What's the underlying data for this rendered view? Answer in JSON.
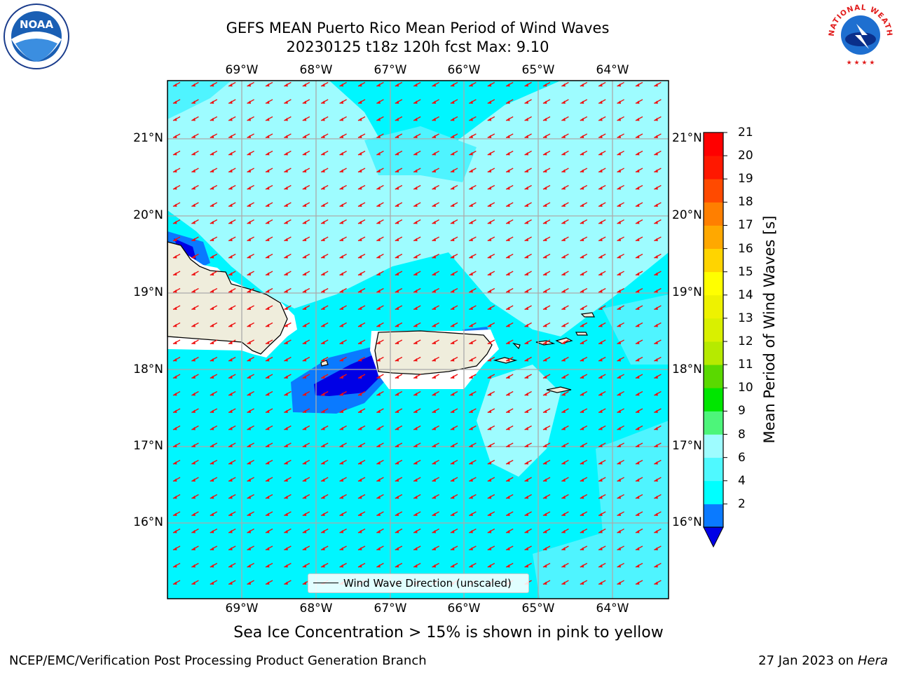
{
  "title_line1": "GEFS MEAN Puerto Rico Mean Period of Wind Waves",
  "title_line2": "20230125 t18z 120h fcst   Max: 9.10",
  "lon_labels": [
    "69°W",
    "68°W",
    "67°W",
    "66°W",
    "65°W",
    "64°W"
  ],
  "lat_labels": [
    "21°N",
    "20°N",
    "19°N",
    "18°N",
    "17°N",
    "16°N"
  ],
  "legend_label": "Wind Wave Direction (unscaled)",
  "colorbar": {
    "label": "Mean Period of Wind Waves [s]",
    "ticks": [
      "21",
      "20",
      "19",
      "18",
      "17",
      "16",
      "15",
      "14",
      "13",
      "12",
      "11",
      "10",
      "9",
      "8",
      "6",
      "4",
      "2"
    ],
    "colors": [
      "#0000e6",
      "#0a7aff",
      "#00ffff",
      "#4ff9ff",
      "#9efcff",
      "#4df57a",
      "#00e600",
      "#5ad900",
      "#b6ea00",
      "#d9f000",
      "#eef200",
      "#ffff00",
      "#ffd400",
      "#ffa800",
      "#ff7f00",
      "#ff4a00",
      "#ff1800",
      "#ff0000"
    ]
  },
  "ice_note": "Sea Ice Concentration > 15% is shown in pink to yellow",
  "footer_left": "NCEP/EMC/Verification Post Processing Product Generation Branch",
  "footer_right_date": "27 Jan 2023 on",
  "footer_right_machine": "Hera",
  "logos": {
    "noaa": "NOAA",
    "nws_text": "NATIONAL WEATHER SERVICE"
  },
  "colors": {
    "land": "#efeddc",
    "arrow": "#ee1111",
    "cyan": "#00f6ff",
    "light_cyan": "#9efcff",
    "mid_cyan": "#4ff4ff",
    "blue": "#0a7aff",
    "deep_blue": "#0000e6"
  }
}
